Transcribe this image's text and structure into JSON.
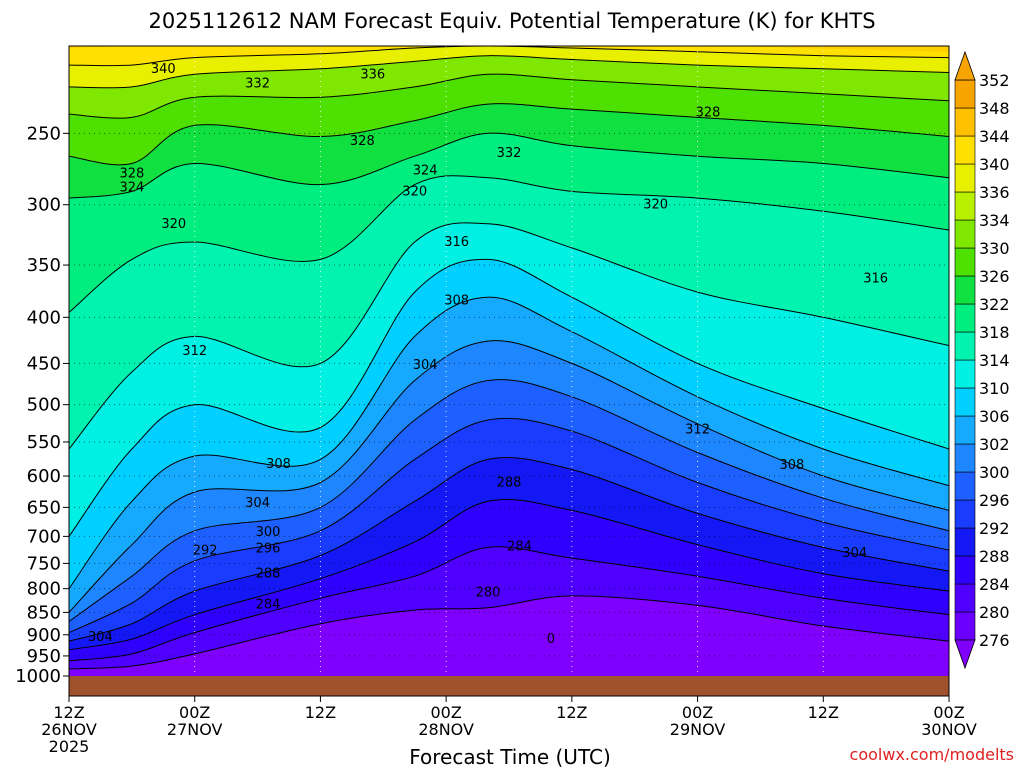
{
  "chart_data": {
    "type": "heatmap",
    "title": "2025112612 NAM Forecast Equiv. Potential Temperature (K) for KHTS",
    "xlabel": "Forecast Time (UTC)",
    "ylabel": "",
    "credit": "coolwx.com/modelts",
    "x_range_hours": [
      0,
      84
    ],
    "x_ticks": [
      {
        "hour": 0,
        "lines": [
          "12Z",
          "26NOV",
          "2025"
        ]
      },
      {
        "hour": 12,
        "lines": [
          "00Z",
          "27NOV"
        ]
      },
      {
        "hour": 24,
        "lines": [
          "12Z"
        ]
      },
      {
        "hour": 36,
        "lines": [
          "00Z",
          "28NOV"
        ]
      },
      {
        "hour": 48,
        "lines": [
          "12Z"
        ]
      },
      {
        "hour": 60,
        "lines": [
          "00Z",
          "29NOV"
        ]
      },
      {
        "hour": 72,
        "lines": [
          "12Z"
        ]
      },
      {
        "hour": 84,
        "lines": [
          "00Z",
          "30NOV"
        ]
      }
    ],
    "y_axis": "pressure_hPa_log_reversed",
    "y_range": [
      1000,
      200
    ],
    "y_ticks": [
      250,
      300,
      350,
      400,
      450,
      500,
      550,
      600,
      650,
      700,
      750,
      800,
      850,
      900,
      950,
      1000
    ],
    "grid": true,
    "colorbar": {
      "levels": [
        276,
        280,
        284,
        288,
        292,
        296,
        300,
        302,
        306,
        310,
        314,
        318,
        322,
        326,
        330,
        334,
        336,
        340,
        344,
        348,
        352
      ],
      "colors": [
        "#8000ff",
        "#6a00ff",
        "#5000ff",
        "#3000ff",
        "#1418f4",
        "#1a3cff",
        "#1e60ff",
        "#1e86ff",
        "#16aaff",
        "#00d0ff",
        "#00f0e4",
        "#00f4b0",
        "#00ee80",
        "#10e040",
        "#4ee000",
        "#80e800",
        "#b8f000",
        "#e8f000",
        "#ffe000",
        "#ffc000",
        "#f7a300"
      ],
      "extends": "both"
    },
    "ground_color": "#a0522d",
    "series": [
      {
        "level": 280,
        "points": [
          [
            0,
            982
          ],
          [
            6,
            975
          ],
          [
            12,
            945
          ],
          [
            24,
            875
          ],
          [
            33,
            845
          ],
          [
            40,
            840
          ],
          [
            48,
            815
          ],
          [
            60,
            835
          ],
          [
            72,
            880
          ],
          [
            84,
            915
          ]
        ]
      },
      {
        "level": 284,
        "points": [
          [
            0,
            962
          ],
          [
            6,
            945
          ],
          [
            12,
            895
          ],
          [
            24,
            820
          ],
          [
            33,
            775
          ],
          [
            40,
            720
          ],
          [
            48,
            740
          ],
          [
            60,
            775
          ],
          [
            72,
            820
          ],
          [
            84,
            855
          ]
        ]
      },
      {
        "level": 288,
        "points": [
          [
            0,
            935
          ],
          [
            6,
            910
          ],
          [
            12,
            855
          ],
          [
            24,
            780
          ],
          [
            33,
            710
          ],
          [
            40,
            640
          ],
          [
            48,
            655
          ],
          [
            60,
            715
          ],
          [
            72,
            770
          ],
          [
            84,
            805
          ]
        ]
      },
      {
        "level": 292,
        "points": [
          [
            0,
            915
          ],
          [
            6,
            875
          ],
          [
            12,
            805
          ],
          [
            24,
            735
          ],
          [
            33,
            640
          ],
          [
            40,
            575
          ],
          [
            48,
            590
          ],
          [
            60,
            660
          ],
          [
            72,
            720
          ],
          [
            84,
            765
          ]
        ]
      },
      {
        "level": 296,
        "points": [
          [
            0,
            895
          ],
          [
            6,
            830
          ],
          [
            12,
            745
          ],
          [
            24,
            690
          ],
          [
            33,
            575
          ],
          [
            40,
            520
          ],
          [
            48,
            535
          ],
          [
            60,
            610
          ],
          [
            72,
            675
          ],
          [
            84,
            725
          ]
        ]
      },
      {
        "level": 300,
        "points": [
          [
            0,
            870
          ],
          [
            6,
            775
          ],
          [
            12,
            690
          ],
          [
            24,
            650
          ],
          [
            33,
            520
          ],
          [
            40,
            470
          ],
          [
            48,
            490
          ],
          [
            60,
            565
          ],
          [
            72,
            635
          ],
          [
            84,
            690
          ]
        ]
      },
      {
        "level": 304,
        "points": [
          [
            0,
            850
          ],
          [
            6,
            715
          ],
          [
            12,
            625
          ],
          [
            24,
            610
          ],
          [
            33,
            470
          ],
          [
            40,
            425
          ],
          [
            48,
            450
          ],
          [
            60,
            525
          ],
          [
            72,
            600
          ],
          [
            84,
            655
          ]
        ]
      },
      {
        "level": 308,
        "points": [
          [
            0,
            800
          ],
          [
            6,
            640
          ],
          [
            12,
            570
          ],
          [
            24,
            575
          ],
          [
            33,
            420
          ],
          [
            40,
            380
          ],
          [
            48,
            415
          ],
          [
            60,
            490
          ],
          [
            72,
            560
          ],
          [
            84,
            615
          ]
        ]
      },
      {
        "level": 312,
        "points": [
          [
            0,
            700
          ],
          [
            6,
            560
          ],
          [
            12,
            500
          ],
          [
            24,
            530
          ],
          [
            33,
            375
          ],
          [
            40,
            345
          ],
          [
            48,
            380
          ],
          [
            60,
            450
          ],
          [
            72,
            505
          ],
          [
            84,
            560
          ]
        ]
      },
      {
        "level": 316,
        "points": [
          [
            0,
            560
          ],
          [
            6,
            460
          ],
          [
            12,
            420
          ],
          [
            24,
            450
          ],
          [
            33,
            330
          ],
          [
            40,
            315
          ],
          [
            48,
            335
          ],
          [
            60,
            375
          ],
          [
            72,
            400
          ],
          [
            84,
            430
          ]
        ]
      },
      {
        "level": 320,
        "points": [
          [
            0,
            395
          ],
          [
            6,
            345
          ],
          [
            12,
            330
          ],
          [
            24,
            345
          ],
          [
            33,
            285
          ],
          [
            40,
            280
          ],
          [
            48,
            290
          ],
          [
            60,
            295
          ],
          [
            72,
            305
          ],
          [
            84,
            320
          ]
        ]
      },
      {
        "level": 324,
        "points": [
          [
            0,
            295
          ],
          [
            6,
            290
          ],
          [
            12,
            270
          ],
          [
            24,
            285
          ],
          [
            33,
            265
          ],
          [
            40,
            250
          ],
          [
            48,
            258
          ],
          [
            60,
            265
          ],
          [
            72,
            270
          ],
          [
            84,
            280
          ]
        ]
      },
      {
        "level": 328,
        "points": [
          [
            0,
            265
          ],
          [
            6,
            270
          ],
          [
            12,
            245
          ],
          [
            24,
            252
          ],
          [
            33,
            242
          ],
          [
            40,
            232
          ],
          [
            48,
            235
          ],
          [
            60,
            240
          ],
          [
            72,
            245
          ],
          [
            84,
            252
          ]
        ]
      },
      {
        "level": 332,
        "points": [
          [
            0,
            238
          ],
          [
            6,
            240
          ],
          [
            12,
            228
          ],
          [
            24,
            228
          ],
          [
            33,
            222
          ],
          [
            40,
            215
          ],
          [
            48,
            218
          ],
          [
            60,
            222
          ],
          [
            72,
            226
          ],
          [
            84,
            230
          ]
        ]
      },
      {
        "level": 336,
        "points": [
          [
            0,
            222
          ],
          [
            6,
            222
          ],
          [
            12,
            215
          ],
          [
            24,
            212
          ],
          [
            33,
            208
          ],
          [
            40,
            205
          ],
          [
            48,
            207
          ],
          [
            60,
            210
          ],
          [
            72,
            212
          ],
          [
            84,
            214
          ]
        ]
      },
      {
        "level": 340,
        "points": [
          [
            0,
            210
          ],
          [
            6,
            210
          ],
          [
            12,
            206
          ],
          [
            24,
            204
          ],
          [
            33,
            201
          ],
          [
            40,
            200
          ],
          [
            48,
            201
          ],
          [
            60,
            203
          ],
          [
            72,
            205
          ],
          [
            84,
            206
          ]
        ]
      }
    ],
    "contour_labels": [
      {
        "text": "340",
        "hour": 9,
        "p": 212
      },
      {
        "text": "332",
        "hour": 18,
        "p": 220
      },
      {
        "text": "336",
        "hour": 29,
        "p": 215
      },
      {
        "text": "328",
        "hour": 61,
        "p": 237
      },
      {
        "text": "328",
        "hour": 28,
        "p": 255
      },
      {
        "text": "332",
        "hour": 42,
        "p": 263
      },
      {
        "text": "324",
        "hour": 34,
        "p": 275
      },
      {
        "text": "328",
        "hour": 6,
        "p": 277
      },
      {
        "text": "324",
        "hour": 6,
        "p": 287
      },
      {
        "text": "320",
        "hour": 33,
        "p": 290
      },
      {
        "text": "320",
        "hour": 56,
        "p": 300
      },
      {
        "text": "320",
        "hour": 10,
        "p": 315
      },
      {
        "text": "316",
        "hour": 37,
        "p": 330
      },
      {
        "text": "308",
        "hour": 37,
        "p": 383
      },
      {
        "text": "316",
        "hour": 77,
        "p": 362
      },
      {
        "text": "312",
        "hour": 12,
        "p": 436
      },
      {
        "text": "304",
        "hour": 34,
        "p": 452
      },
      {
        "text": "312",
        "hour": 60,
        "p": 533
      },
      {
        "text": "308",
        "hour": 20,
        "p": 582
      },
      {
        "text": "308",
        "hour": 69,
        "p": 583
      },
      {
        "text": "288",
        "hour": 42,
        "p": 610
      },
      {
        "text": "304",
        "hour": 18,
        "p": 643
      },
      {
        "text": "300",
        "hour": 19,
        "p": 692
      },
      {
        "text": "284",
        "hour": 43,
        "p": 718
      },
      {
        "text": "296",
        "hour": 19,
        "p": 722
      },
      {
        "text": "292",
        "hour": 13,
        "p": 726
      },
      {
        "text": "304",
        "hour": 75,
        "p": 730
      },
      {
        "text": "288",
        "hour": 19,
        "p": 770
      },
      {
        "text": "280",
        "hour": 40,
        "p": 808
      },
      {
        "text": "284",
        "hour": 19,
        "p": 833
      },
      {
        "text": "304",
        "hour": 3,
        "p": 905
      },
      {
        "text": "0",
        "hour": 46,
        "p": 910
      }
    ]
  }
}
